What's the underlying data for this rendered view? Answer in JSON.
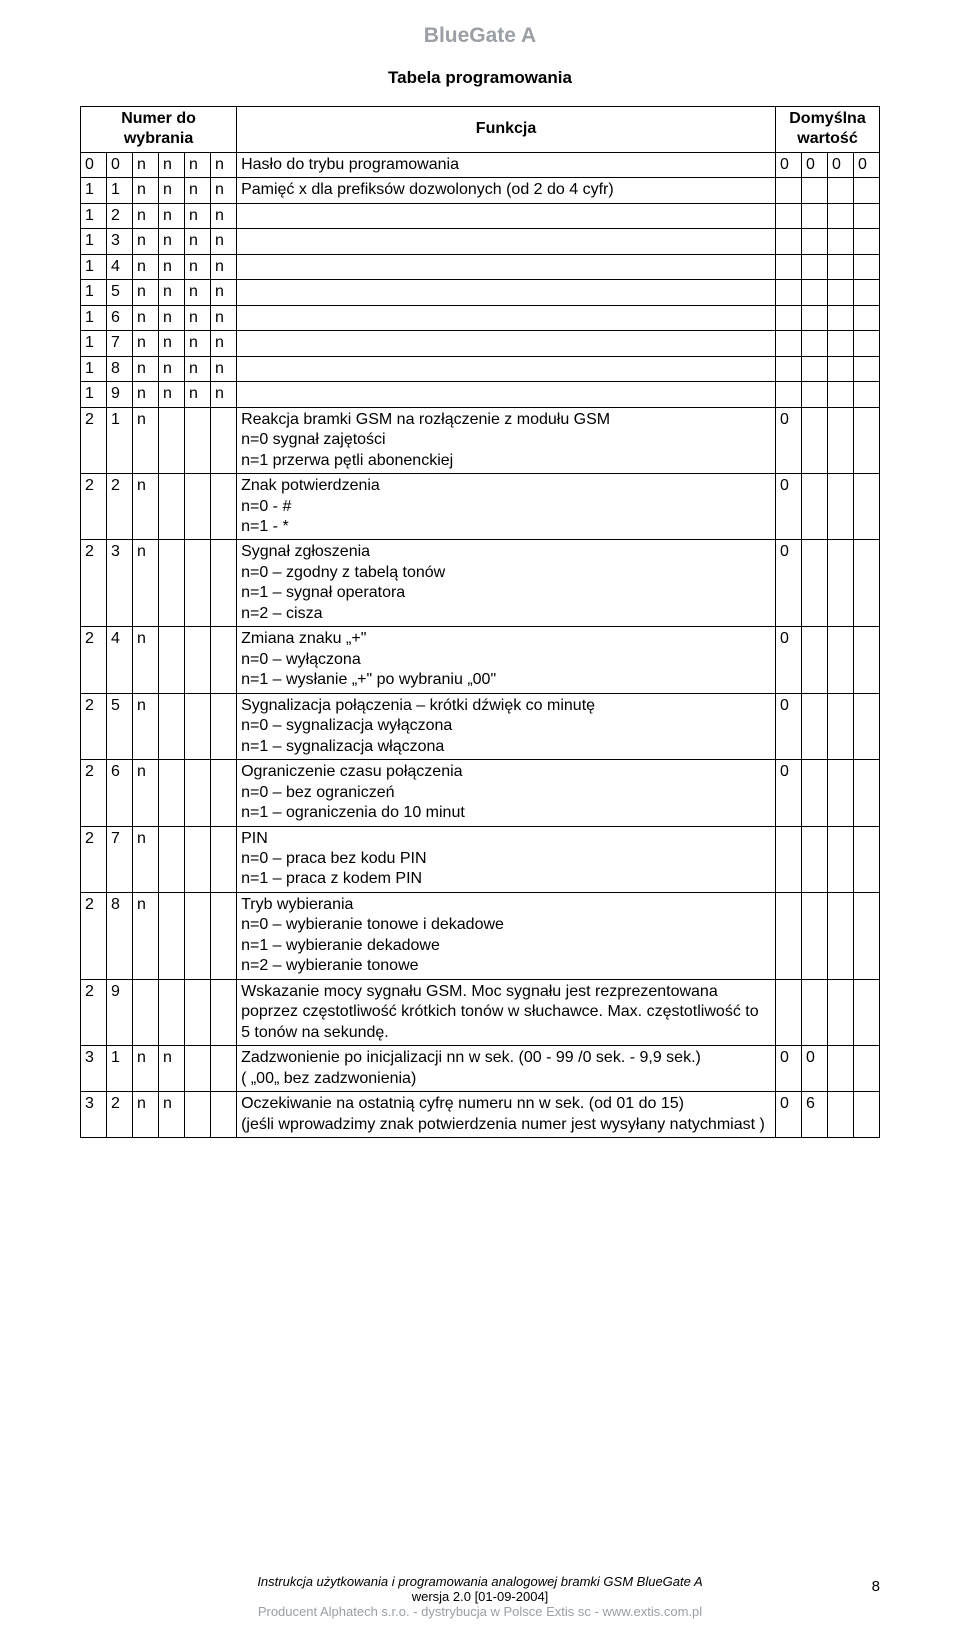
{
  "doc_title": "BlueGate A",
  "section_title": "Tabela programowania",
  "header": {
    "left": "Numer do wybrania",
    "center": "Funkcja",
    "right": "Domyślna wartość"
  },
  "rows": [
    {
      "code": [
        "0",
        "0",
        "n",
        "n",
        "n",
        "n"
      ],
      "func": "Hasło do trybu programowania",
      "def": [
        "0",
        "0",
        "0",
        "0"
      ]
    },
    {
      "code": [
        "1",
        "1",
        "n",
        "n",
        "n",
        "n"
      ],
      "func": "Pamięć x dla prefiksów dozwolonych (od 2 do 4 cyfr)",
      "def": [
        "",
        "",
        "",
        ""
      ]
    },
    {
      "code": [
        "1",
        "2",
        "n",
        "n",
        "n",
        "n"
      ],
      "func": "",
      "def": [
        "",
        "",
        "",
        ""
      ]
    },
    {
      "code": [
        "1",
        "3",
        "n",
        "n",
        "n",
        "n"
      ],
      "func": "",
      "def": [
        "",
        "",
        "",
        ""
      ]
    },
    {
      "code": [
        "1",
        "4",
        "n",
        "n",
        "n",
        "n"
      ],
      "func": "",
      "def": [
        "",
        "",
        "",
        ""
      ]
    },
    {
      "code": [
        "1",
        "5",
        "n",
        "n",
        "n",
        "n"
      ],
      "func": "",
      "def": [
        "",
        "",
        "",
        ""
      ]
    },
    {
      "code": [
        "1",
        "6",
        "n",
        "n",
        "n",
        "n"
      ],
      "func": "",
      "def": [
        "",
        "",
        "",
        ""
      ]
    },
    {
      "code": [
        "1",
        "7",
        "n",
        "n",
        "n",
        "n"
      ],
      "func": "",
      "def": [
        "",
        "",
        "",
        ""
      ]
    },
    {
      "code": [
        "1",
        "8",
        "n",
        "n",
        "n",
        "n"
      ],
      "func": "",
      "def": [
        "",
        "",
        "",
        ""
      ]
    },
    {
      "code": [
        "1",
        "9",
        "n",
        "n",
        "n",
        "n"
      ],
      "func": "",
      "def": [
        "",
        "",
        "",
        ""
      ]
    },
    {
      "code": [
        "2",
        "1",
        "n",
        "",
        "",
        ""
      ],
      "func": "Reakcja bramki GSM na rozłączenie z modułu GSM\nn=0  sygnał zajętości\nn=1  przerwa pętli abonenckiej",
      "def": [
        "0",
        "",
        "",
        ""
      ]
    },
    {
      "code": [
        "2",
        "2",
        "n",
        "",
        "",
        ""
      ],
      "func": "Znak potwierdzenia\nn=0 - #\nn=1 - *",
      "def": [
        "0",
        "",
        "",
        ""
      ]
    },
    {
      "code": [
        "2",
        "3",
        "n",
        "",
        "",
        ""
      ],
      "func": "Sygnał zgłoszenia\nn=0 – zgodny z tabelą tonów\nn=1 – sygnał operatora\nn=2 – cisza",
      "def": [
        "0",
        "",
        "",
        ""
      ]
    },
    {
      "code": [
        "2",
        "4",
        "n",
        "",
        "",
        ""
      ],
      "func": "Zmiana znaku „+\"\nn=0 – wyłączona\nn=1 – wysłanie „+\" po wybraniu „00\"",
      "def": [
        "0",
        "",
        "",
        ""
      ]
    },
    {
      "code": [
        "2",
        "5",
        "n",
        "",
        "",
        ""
      ],
      "func": "Sygnalizacja połączenia – krótki dźwięk co minutę\nn=0 – sygnalizacja wyłączona\nn=1 – sygnalizacja włączona",
      "def": [
        "0",
        "",
        "",
        ""
      ]
    },
    {
      "code": [
        "2",
        "6",
        "n",
        "",
        "",
        ""
      ],
      "func": "Ograniczenie czasu połączenia\nn=0 – bez ograniczeń\nn=1 – ograniczenia do 10 minut",
      "def": [
        "0",
        "",
        "",
        ""
      ]
    },
    {
      "code": [
        "2",
        "7",
        "n",
        "",
        "",
        ""
      ],
      "func": "PIN\nn=0 – praca bez kodu PIN\nn=1 – praca z kodem PIN",
      "def": [
        "",
        "",
        "",
        ""
      ]
    },
    {
      "code": [
        "2",
        "8",
        "n",
        "",
        "",
        ""
      ],
      "func": "Tryb wybierania\nn=0 – wybieranie tonowe i dekadowe\nn=1 – wybieranie dekadowe\nn=2 – wybieranie tonowe",
      "def": [
        "",
        "",
        "",
        ""
      ]
    },
    {
      "code": [
        "2",
        "9",
        "",
        "",
        "",
        ""
      ],
      "func": "Wskazanie mocy sygnału GSM. Moc sygnału jest rezprezentowana poprzez częstotliwość krótkich tonów w słuchawce. Max. częstotliwość to 5 tonów na sekundę.",
      "def": [
        "",
        "",
        "",
        ""
      ]
    },
    {
      "code": [
        "3",
        "1",
        "n",
        "n",
        "",
        ""
      ],
      "func": "Zadzwonienie po inicjalizacji nn w sek. (00 - 99 /0 sek. - 9,9 sek.)\n( „00„  bez zadzwonienia)",
      "def": [
        "0",
        "0",
        "",
        ""
      ]
    },
    {
      "code": [
        "3",
        "2",
        "n",
        "n",
        "",
        ""
      ],
      "func": "Oczekiwanie na ostatnią cyfrę numeru nn  w sek. (od 01 do 15)\n(jeśli wprowadzimy znak potwierdzenia numer jest wysyłany natychmiast )",
      "def": [
        "0",
        "6",
        "",
        ""
      ]
    }
  ],
  "footer": {
    "line1_a": "Instrukcja użytkowania i programowania analogowej bramki GSM ",
    "line1_b": "BlueGate A",
    "line2": "wersja 2.0 [01-09-2004]",
    "line3": "Producent Alphatech s.r.o. - dystrybucja w Polsce Extis sc - www.extis.com.pl",
    "pagenum": "8"
  }
}
